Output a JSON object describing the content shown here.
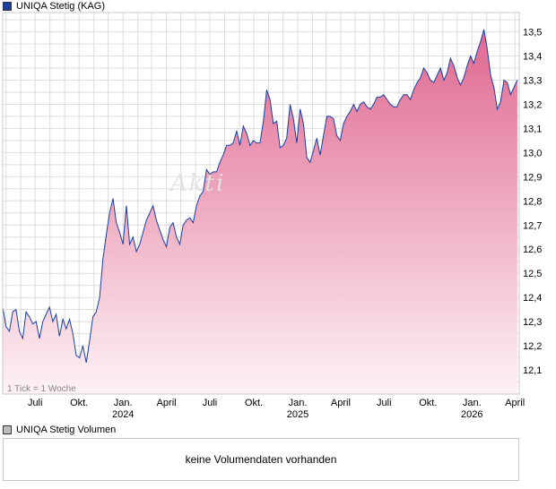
{
  "legend": {
    "main_label": "UNIQA Stetig (KAG)",
    "volume_label": "UNIQA Stetig Volumen"
  },
  "tick_note": "1 Tick = 1 Woche",
  "volume_message": "keine Volumendaten vorhanden",
  "watermark": "Akti",
  "colors": {
    "line": "#1a3f9e",
    "fill_top": "#e06890",
    "fill_bottom": "#fdf2f6",
    "grid": "#dddddd"
  },
  "chart_data": {
    "type": "area",
    "ylim": [
      12.0,
      13.58
    ],
    "y_ticks": [
      12.1,
      12.2,
      12.3,
      12.4,
      12.5,
      12.6,
      12.7,
      12.8,
      12.9,
      13.0,
      13.1,
      13.2,
      13.3,
      13.4,
      13.5
    ],
    "y_tick_labels": [
      "12,1",
      "12,2",
      "12,3",
      "12,4",
      "12,5",
      "12,6",
      "12,7",
      "12,8",
      "12,9",
      "13,0",
      "13,1",
      "13,2",
      "13,3",
      "13,4",
      "13,5"
    ],
    "x_ticks": [
      {
        "label": "Juli",
        "year": "",
        "x": "2023-07-01"
      },
      {
        "label": "Okt.",
        "year": "",
        "x": "2023-10-01"
      },
      {
        "label": "Jan.",
        "year": "2024",
        "x": "2024-01-01"
      },
      {
        "label": "April",
        "year": "",
        "x": "2024-04-01"
      },
      {
        "label": "Juli",
        "year": "",
        "x": "2024-07-01"
      },
      {
        "label": "Okt.",
        "year": "",
        "x": "2024-10-01"
      },
      {
        "label": "Jan.",
        "year": "2025",
        "x": "2025-01-01"
      },
      {
        "label": "April",
        "year": "",
        "x": "2025-04-01"
      },
      {
        "label": "Juli",
        "year": "",
        "x": "2025-07-01"
      },
      {
        "label": "Okt.",
        "year": "",
        "x": "2025-10-01"
      },
      {
        "label": "Jan.",
        "year": "2026",
        "x": "2026-01-01"
      },
      {
        "label": "April",
        "year": "",
        "x": "2026-04-01"
      }
    ],
    "x_range": [
      "2023-04-24",
      "2026-04-10"
    ],
    "series": [
      {
        "points": [
          [
            "2023-04-24",
            12.36
          ],
          [
            "2023-05-01",
            12.28
          ],
          [
            "2023-05-08",
            12.26
          ],
          [
            "2023-05-15",
            12.34
          ],
          [
            "2023-05-22",
            12.35
          ],
          [
            "2023-05-29",
            12.26
          ],
          [
            "2023-06-05",
            12.23
          ],
          [
            "2023-06-12",
            12.34
          ],
          [
            "2023-06-19",
            12.32
          ],
          [
            "2023-06-26",
            12.29
          ],
          [
            "2023-07-03",
            12.3
          ],
          [
            "2023-07-10",
            12.23
          ],
          [
            "2023-07-17",
            12.3
          ],
          [
            "2023-07-24",
            12.33
          ],
          [
            "2023-07-31",
            12.36
          ],
          [
            "2023-08-07",
            12.3
          ],
          [
            "2023-08-14",
            12.33
          ],
          [
            "2023-08-21",
            12.24
          ],
          [
            "2023-08-28",
            12.31
          ],
          [
            "2023-09-04",
            12.27
          ],
          [
            "2023-09-11",
            12.31
          ],
          [
            "2023-09-18",
            12.25
          ],
          [
            "2023-09-25",
            12.16
          ],
          [
            "2023-10-02",
            12.15
          ],
          [
            "2023-10-09",
            12.2
          ],
          [
            "2023-10-16",
            12.13
          ],
          [
            "2023-10-23",
            12.22
          ],
          [
            "2023-10-30",
            12.32
          ],
          [
            "2023-11-06",
            12.34
          ],
          [
            "2023-11-13",
            12.4
          ],
          [
            "2023-11-20",
            12.56
          ],
          [
            "2023-11-27",
            12.66
          ],
          [
            "2023-12-04",
            12.75
          ],
          [
            "2023-12-11",
            12.81
          ],
          [
            "2023-12-18",
            12.71
          ],
          [
            "2023-12-25",
            12.67
          ],
          [
            "2024-01-01",
            12.62
          ],
          [
            "2024-01-08",
            12.78
          ],
          [
            "2024-01-15",
            12.62
          ],
          [
            "2024-01-22",
            12.65
          ],
          [
            "2024-01-29",
            12.59
          ],
          [
            "2024-02-05",
            12.62
          ],
          [
            "2024-02-12",
            12.67
          ],
          [
            "2024-02-19",
            12.72
          ],
          [
            "2024-02-26",
            12.75
          ],
          [
            "2024-03-04",
            12.78
          ],
          [
            "2024-03-11",
            12.72
          ],
          [
            "2024-03-18",
            12.68
          ],
          [
            "2024-03-25",
            12.64
          ],
          [
            "2024-04-01",
            12.61
          ],
          [
            "2024-04-08",
            12.69
          ],
          [
            "2024-04-15",
            12.71
          ],
          [
            "2024-04-22",
            12.65
          ],
          [
            "2024-04-29",
            12.62
          ],
          [
            "2024-05-06",
            12.7
          ],
          [
            "2024-05-13",
            12.72
          ],
          [
            "2024-05-20",
            12.73
          ],
          [
            "2024-05-27",
            12.71
          ],
          [
            "2024-06-03",
            12.78
          ],
          [
            "2024-06-10",
            12.82
          ],
          [
            "2024-06-17",
            12.84
          ],
          [
            "2024-06-24",
            12.93
          ],
          [
            "2024-07-01",
            12.91
          ],
          [
            "2024-07-08",
            12.92
          ],
          [
            "2024-07-15",
            12.92
          ],
          [
            "2024-07-22",
            12.96
          ],
          [
            "2024-07-29",
            12.99
          ],
          [
            "2024-08-05",
            13.03
          ],
          [
            "2024-08-12",
            13.03
          ],
          [
            "2024-08-19",
            13.04
          ],
          [
            "2024-08-26",
            13.09
          ],
          [
            "2024-09-02",
            13.03
          ],
          [
            "2024-09-09",
            13.11
          ],
          [
            "2024-09-16",
            13.08
          ],
          [
            "2024-09-23",
            13.03
          ],
          [
            "2024-09-30",
            13.05
          ],
          [
            "2024-10-07",
            13.04
          ],
          [
            "2024-10-14",
            13.04
          ],
          [
            "2024-10-21",
            13.13
          ],
          [
            "2024-10-28",
            13.26
          ],
          [
            "2024-11-04",
            13.22
          ],
          [
            "2024-11-11",
            13.12
          ],
          [
            "2024-11-18",
            13.13
          ],
          [
            "2024-11-25",
            13.02
          ],
          [
            "2024-12-02",
            13.03
          ],
          [
            "2024-12-09",
            13.06
          ],
          [
            "2024-12-16",
            13.2
          ],
          [
            "2024-12-23",
            13.14
          ],
          [
            "2024-12-30",
            13.04
          ],
          [
            "2025-01-06",
            13.18
          ],
          [
            "2025-01-13",
            13.12
          ],
          [
            "2025-01-20",
            12.98
          ],
          [
            "2025-01-27",
            12.96
          ],
          [
            "2025-02-03",
            13.01
          ],
          [
            "2025-02-10",
            13.06
          ],
          [
            "2025-02-17",
            12.99
          ],
          [
            "2025-02-24",
            13.07
          ],
          [
            "2025-03-03",
            13.15
          ],
          [
            "2025-03-10",
            13.15
          ],
          [
            "2025-03-17",
            13.14
          ],
          [
            "2025-03-24",
            13.07
          ],
          [
            "2025-03-31",
            13.05
          ],
          [
            "2025-04-07",
            13.12
          ],
          [
            "2025-04-14",
            13.15
          ],
          [
            "2025-04-21",
            13.17
          ],
          [
            "2025-04-28",
            13.2
          ],
          [
            "2025-05-05",
            13.17
          ],
          [
            "2025-05-12",
            13.2
          ],
          [
            "2025-05-19",
            13.21
          ],
          [
            "2025-05-26",
            13.19
          ],
          [
            "2025-06-02",
            13.18
          ],
          [
            "2025-06-09",
            13.2
          ],
          [
            "2025-06-16",
            13.23
          ],
          [
            "2025-06-23",
            13.23
          ],
          [
            "2025-06-30",
            13.24
          ],
          [
            "2025-07-07",
            13.22
          ],
          [
            "2025-07-14",
            13.2
          ],
          [
            "2025-07-21",
            13.19
          ],
          [
            "2025-07-28",
            13.19
          ],
          [
            "2025-08-04",
            13.22
          ],
          [
            "2025-08-11",
            13.24
          ],
          [
            "2025-08-18",
            13.24
          ],
          [
            "2025-08-25",
            13.22
          ],
          [
            "2025-09-01",
            13.26
          ],
          [
            "2025-09-08",
            13.29
          ],
          [
            "2025-09-15",
            13.31
          ],
          [
            "2025-09-22",
            13.35
          ],
          [
            "2025-09-29",
            13.33
          ],
          [
            "2025-10-06",
            13.3
          ],
          [
            "2025-10-13",
            13.29
          ],
          [
            "2025-10-20",
            13.32
          ],
          [
            "2025-10-27",
            13.35
          ],
          [
            "2025-11-03",
            13.3
          ],
          [
            "2025-11-10",
            13.33
          ],
          [
            "2025-11-17",
            13.39
          ],
          [
            "2025-11-24",
            13.36
          ],
          [
            "2025-12-01",
            13.31
          ],
          [
            "2025-12-08",
            13.28
          ],
          [
            "2025-12-15",
            13.31
          ],
          [
            "2025-12-22",
            13.36
          ],
          [
            "2025-12-29",
            13.4
          ],
          [
            "2026-01-05",
            13.37
          ],
          [
            "2026-01-12",
            13.42
          ],
          [
            "2026-01-19",
            13.46
          ],
          [
            "2026-01-26",
            13.51
          ],
          [
            "2026-02-02",
            13.43
          ],
          [
            "2026-02-09",
            13.32
          ],
          [
            "2026-02-16",
            13.27
          ],
          [
            "2026-02-23",
            13.18
          ],
          [
            "2026-03-02",
            13.21
          ],
          [
            "2026-03-09",
            13.3
          ],
          [
            "2026-03-16",
            13.29
          ],
          [
            "2026-03-23",
            13.24
          ],
          [
            "2026-03-30",
            13.27
          ],
          [
            "2026-04-06",
            13.3
          ]
        ]
      }
    ]
  }
}
